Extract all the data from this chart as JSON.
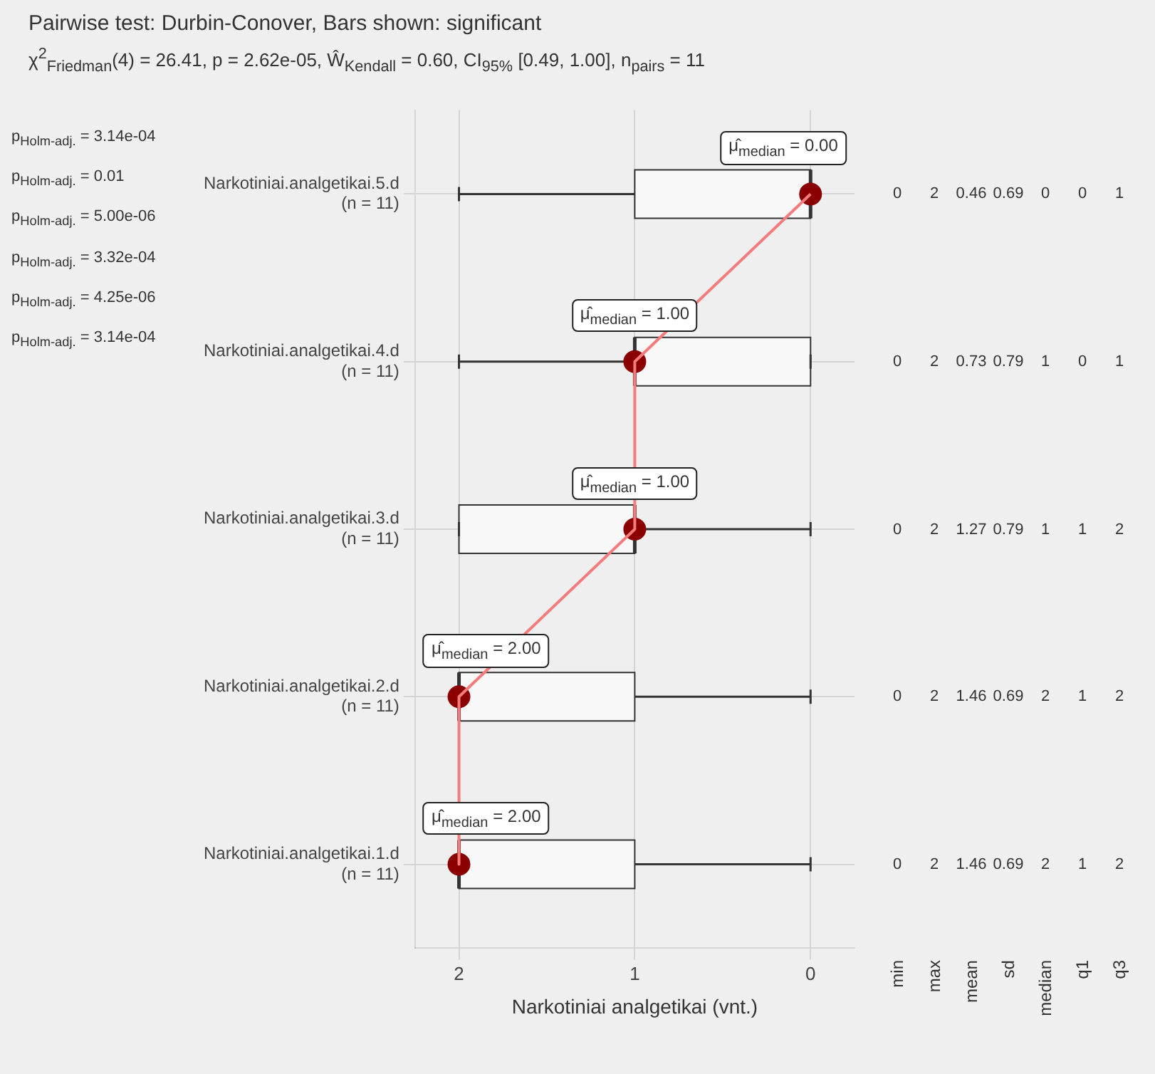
{
  "chart_data": [
    {
      "type": "box",
      "orientation": "horizontal",
      "title": "Pairwise test: Durbin-Conover, Bars shown: significant",
      "subtitle": "χ$^{2}$$_{Friedman}$(4) = 26.41, p = 2.62e-05, Ŵ$_{Kendall}$ = 0.60, CI$_{95%}$ [0.49, 1.00], n$_{pairs}$ = 11",
      "xlabel": "Narkotiniai analgetikai (vnt.)",
      "categories": [
        "Narkotiniai.analgetikai.5.d\n(n = 11)",
        "Narkotiniai.analgetikai.4.d\n(n = 11)",
        "Narkotiniai.analgetikai.3.d\n(n = 11)",
        "Narkotiniai.analgetikai.2.d\n(n = 11)",
        "Narkotiniai.analgetikai.1.d\n(n = 11)"
      ],
      "boxes": [
        {
          "low": 0,
          "q1": 0,
          "median": 0,
          "q3": 1,
          "high": 2
        },
        {
          "low": 0,
          "q1": 0,
          "median": 1,
          "q3": 1,
          "high": 2
        },
        {
          "low": 0,
          "q1": 1,
          "median": 1,
          "q3": 2,
          "high": 2
        },
        {
          "low": 0,
          "q1": 1,
          "median": 2,
          "q3": 2,
          "high": 2
        },
        {
          "low": 0,
          "q1": 1,
          "median": 2,
          "q3": 2,
          "high": 2
        }
      ],
      "series": [
        {
          "type": "line",
          "color": "#f47c7c",
          "marker": "none",
          "values": [
            0,
            1,
            1,
            2,
            2
          ]
        },
        {
          "type": "scatter",
          "color": "#8b0000",
          "marker": "circle",
          "x": [
            "Narkotiniai.analgetikai.5.d\n(n = 11)",
            "Narkotiniai.analgetikai.4.d\n(n = 11)",
            "Narkotiniai.analgetikai.3.d\n(n = 11)",
            "Narkotiniai.analgetikai.2.d\n(n = 11)",
            "Narkotiniai.analgetikai.1.d\n(n = 11)"
          ],
          "values": [
            0,
            1,
            1,
            2,
            2
          ]
        }
      ],
      "xlim": [
        2.25,
        -0.25
      ],
      "xticks": [
        0,
        1,
        2
      ],
      "grid": true,
      "legend": false,
      "annotations": [
        {
          "text": "μ̂$_{median}$ = 0.00",
          "x": 0,
          "y": "Narkotiniai.analgetikai.5.d\n(n = 11)"
        },
        {
          "text": "μ̂$_{median}$ = 1.00",
          "x": 1,
          "y": "Narkotiniai.analgetikai.4.d\n(n = 11)"
        },
        {
          "text": "μ̂$_{median}$ = 1.00",
          "x": 1,
          "y": "Narkotiniai.analgetikai.3.d\n(n = 11)"
        },
        {
          "text": "μ̂$_{median}$ = 2.00",
          "x": 2,
          "y": "Narkotiniai.analgetikai.2.d\n(n = 11)"
        },
        {
          "text": "μ̂$_{median}$ = 2.00",
          "x": 2,
          "y": "Narkotiniai.analgetikai.1.d\n(n = 11)"
        },
        "p$_{Holm-adj.}$ = 3.14e-04",
        "p$_{Holm-adj.}$ = 0.01",
        "p$_{Holm-adj.}$ = 5.00e-06",
        "p$_{Holm-adj.}$ = 3.32e-04",
        "p$_{Holm-adj.}$ = 4.25e-06",
        "p$_{Holm-adj.}$ = 3.14e-04"
      ]
    },
    {
      "type": "heatmap",
      "categories": [
        "min",
        "max",
        "mean",
        "sd",
        "median",
        "q1",
        "q3"
      ],
      "y_categories": [
        null,
        null,
        null,
        null,
        null
      ],
      "cells": [
        [
          0,
          2,
          0.46,
          0.69,
          0,
          0,
          1
        ],
        [
          0,
          2,
          0.73,
          0.79,
          1,
          0,
          1
        ],
        [
          0,
          2,
          1.27,
          0.79,
          1,
          1,
          2
        ],
        [
          0,
          2,
          1.46,
          0.69,
          2,
          1,
          2
        ],
        [
          0,
          2,
          1.46,
          0.69,
          2,
          1,
          2
        ]
      ],
      "data_labels": true
    }
  ]
}
